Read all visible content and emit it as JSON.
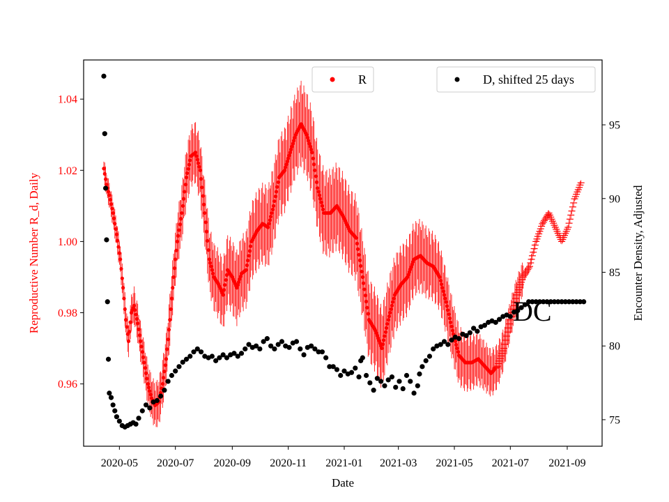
{
  "chart_data": {
    "type": "scatter",
    "title": "",
    "xlabel": "Date",
    "ylabel_left": "Reproductive Number R_d, Daily",
    "ylabel_right": "Encounter Density, Adjusted",
    "annotation": "DC",
    "grid": false,
    "left_axis_color": "#ff0000",
    "x_ticks": [
      "2020-05",
      "2020-07",
      "2020-09",
      "2020-11",
      "2021-01",
      "2021-03",
      "2021-05",
      "2021-07",
      "2021-09"
    ],
    "y_left_ticks": [
      "0.96",
      "0.98",
      "1.00",
      "1.02",
      "1.04"
    ],
    "y_right_ticks": [
      "75",
      "80",
      "85",
      "90",
      "95"
    ],
    "xlim": [
      "2020-03-23",
      "2021-10-09"
    ],
    "ylim_left": [
      0.9425,
      1.051
    ],
    "ylim_right": [
      73.2,
      99.4
    ],
    "legends": [
      {
        "label": "R",
        "color": "#ff0000",
        "position": "top-center"
      },
      {
        "label": "D, shifted 25 days",
        "color": "#000000",
        "position": "top-right"
      }
    ],
    "series": [
      {
        "name": "R",
        "axis": "left",
        "color": "#ff0000",
        "style": "points-with-errorbars",
        "points": [
          [
            "2020-04-14",
            1.0205
          ],
          [
            "2020-04-17",
            1.016
          ],
          [
            "2020-04-20",
            1.013
          ],
          [
            "2020-04-24",
            1.008
          ],
          [
            "2020-04-28",
            1.002
          ],
          [
            "2020-05-02",
            0.995
          ],
          [
            "2020-05-05",
            0.987
          ],
          [
            "2020-05-08",
            0.978
          ],
          [
            "2020-05-11",
            0.972
          ],
          [
            "2020-05-14",
            0.98
          ],
          [
            "2020-05-17",
            0.982
          ],
          [
            "2020-05-21",
            0.977
          ],
          [
            "2020-05-24",
            0.972
          ],
          [
            "2020-05-28",
            0.966
          ],
          [
            "2020-06-01",
            0.96
          ],
          [
            "2020-06-05",
            0.956
          ],
          [
            "2020-06-09",
            0.954
          ],
          [
            "2020-06-13",
            0.955
          ],
          [
            "2020-06-17",
            0.96
          ],
          [
            "2020-06-21",
            0.967
          ],
          [
            "2020-06-25",
            0.978
          ],
          [
            "2020-06-29",
            0.99
          ],
          [
            "2020-07-03",
            1.0
          ],
          [
            "2020-07-08",
            1.008
          ],
          [
            "2020-07-13",
            1.018
          ],
          [
            "2020-07-18",
            1.024
          ],
          [
            "2020-07-23",
            1.025
          ],
          [
            "2020-07-28",
            1.02
          ],
          [
            "2020-08-02",
            1.008
          ],
          [
            "2020-08-07",
            0.995
          ],
          [
            "2020-08-12",
            0.99
          ],
          [
            "2020-08-17",
            0.988
          ],
          [
            "2020-08-22",
            0.985
          ],
          [
            "2020-08-27",
            0.992
          ],
          [
            "2020-09-01",
            0.99
          ],
          [
            "2020-09-06",
            0.987
          ],
          [
            "2020-09-11",
            0.991
          ],
          [
            "2020-09-16",
            0.992
          ],
          [
            "2020-09-22",
            1.0
          ],
          [
            "2020-09-28",
            1.003
          ],
          [
            "2020-10-04",
            1.005
          ],
          [
            "2020-10-10",
            1.004
          ],
          [
            "2020-10-16",
            1.01
          ],
          [
            "2020-10-22",
            1.018
          ],
          [
            "2020-10-28",
            1.02
          ],
          [
            "2020-11-03",
            1.025
          ],
          [
            "2020-11-09",
            1.03
          ],
          [
            "2020-11-15",
            1.033
          ],
          [
            "2020-11-21",
            1.03
          ],
          [
            "2020-11-27",
            1.025
          ],
          [
            "2020-12-03",
            1.015
          ],
          [
            "2020-12-10",
            1.008
          ],
          [
            "2020-12-17",
            1.008
          ],
          [
            "2020-12-24",
            1.01
          ],
          [
            "2020-12-31",
            1.007
          ],
          [
            "2021-01-07",
            1.003
          ],
          [
            "2021-01-14",
            1.001
          ],
          [
            "2021-01-21",
            0.99
          ],
          [
            "2021-01-28",
            0.978
          ],
          [
            "2021-02-04",
            0.975
          ],
          [
            "2021-02-11",
            0.97
          ],
          [
            "2021-02-18",
            0.978
          ],
          [
            "2021-02-25",
            0.985
          ],
          [
            "2021-03-04",
            0.988
          ],
          [
            "2021-03-11",
            0.99
          ],
          [
            "2021-03-18",
            0.995
          ],
          [
            "2021-03-25",
            0.996
          ],
          [
            "2021-04-01",
            0.994
          ],
          [
            "2021-04-08",
            0.993
          ],
          [
            "2021-04-15",
            0.99
          ],
          [
            "2021-04-22",
            0.983
          ],
          [
            "2021-04-29",
            0.975
          ],
          [
            "2021-05-06",
            0.968
          ],
          [
            "2021-05-13",
            0.966
          ],
          [
            "2021-05-20",
            0.966
          ],
          [
            "2021-05-27",
            0.967
          ],
          [
            "2021-06-03",
            0.965
          ],
          [
            "2021-06-10",
            0.963
          ],
          [
            "2021-06-17",
            0.965
          ],
          [
            "2021-06-24",
            0.97
          ],
          [
            "2021-07-01",
            0.978
          ],
          [
            "2021-07-08",
            0.985
          ],
          [
            "2021-07-15",
            0.99
          ],
          [
            "2021-07-22",
            0.993
          ],
          [
            "2021-07-29",
            1.0
          ],
          [
            "2021-08-05",
            1.005
          ],
          [
            "2021-08-12",
            1.008
          ],
          [
            "2021-08-19",
            1.004
          ],
          [
            "2021-08-26",
            1.0
          ],
          [
            "2021-09-02",
            1.004
          ],
          [
            "2021-09-09",
            1.012
          ],
          [
            "2021-09-16",
            1.0165
          ]
        ]
      },
      {
        "name": "D, shifted 25 days",
        "axis": "right",
        "color": "#000000",
        "style": "points",
        "points": [
          [
            "2020-04-14",
            98.3
          ],
          [
            "2020-04-15",
            94.4
          ],
          [
            "2020-04-16",
            90.7
          ],
          [
            "2020-04-17",
            87.2
          ],
          [
            "2020-04-18",
            83.0
          ],
          [
            "2020-04-19",
            79.1
          ],
          [
            "2020-04-20",
            76.8
          ],
          [
            "2020-04-22",
            76.5
          ],
          [
            "2020-04-24",
            76.0
          ],
          [
            "2020-04-26",
            75.6
          ],
          [
            "2020-04-28",
            75.2
          ],
          [
            "2020-05-01",
            74.9
          ],
          [
            "2020-05-04",
            74.6
          ],
          [
            "2020-05-07",
            74.5
          ],
          [
            "2020-05-10",
            74.6
          ],
          [
            "2020-05-13",
            74.7
          ],
          [
            "2020-05-16",
            74.8
          ],
          [
            "2020-05-19",
            74.7
          ],
          [
            "2020-05-22",
            75.1
          ],
          [
            "2020-05-26",
            75.6
          ],
          [
            "2020-05-30",
            76.0
          ],
          [
            "2020-06-03",
            75.8
          ],
          [
            "2020-06-07",
            76.2
          ],
          [
            "2020-06-11",
            76.3
          ],
          [
            "2020-06-15",
            76.6
          ],
          [
            "2020-06-19",
            77.0
          ],
          [
            "2020-06-23",
            77.6
          ],
          [
            "2020-06-27",
            78.0
          ],
          [
            "2020-07-01",
            78.3
          ],
          [
            "2020-07-05",
            78.6
          ],
          [
            "2020-07-09",
            78.9
          ],
          [
            "2020-07-13",
            79.1
          ],
          [
            "2020-07-17",
            79.3
          ],
          [
            "2020-07-21",
            79.6
          ],
          [
            "2020-07-25",
            79.8
          ],
          [
            "2020-07-29",
            79.6
          ],
          [
            "2020-08-02",
            79.3
          ],
          [
            "2020-08-06",
            79.2
          ],
          [
            "2020-08-10",
            79.3
          ],
          [
            "2020-08-14",
            79.0
          ],
          [
            "2020-08-18",
            79.2
          ],
          [
            "2020-08-22",
            79.4
          ],
          [
            "2020-08-26",
            79.2
          ],
          [
            "2020-08-30",
            79.4
          ],
          [
            "2020-09-03",
            79.5
          ],
          [
            "2020-09-07",
            79.3
          ],
          [
            "2020-09-11",
            79.5
          ],
          [
            "2020-09-15",
            79.8
          ],
          [
            "2020-09-19",
            80.1
          ],
          [
            "2020-09-23",
            79.9
          ],
          [
            "2020-09-27",
            80.0
          ],
          [
            "2020-10-01",
            79.8
          ],
          [
            "2020-10-05",
            80.3
          ],
          [
            "2020-10-09",
            80.5
          ],
          [
            "2020-10-13",
            80.0
          ],
          [
            "2020-10-17",
            79.8
          ],
          [
            "2020-10-21",
            80.1
          ],
          [
            "2020-10-25",
            80.3
          ],
          [
            "2020-10-29",
            80.0
          ],
          [
            "2020-11-02",
            79.9
          ],
          [
            "2020-11-06",
            80.2
          ],
          [
            "2020-11-10",
            80.3
          ],
          [
            "2020-11-14",
            79.8
          ],
          [
            "2020-11-18",
            79.4
          ],
          [
            "2020-11-22",
            79.9
          ],
          [
            "2020-11-26",
            80.0
          ],
          [
            "2020-11-30",
            79.8
          ],
          [
            "2020-12-04",
            79.6
          ],
          [
            "2020-12-08",
            79.6
          ],
          [
            "2020-12-12",
            79.2
          ],
          [
            "2020-12-16",
            78.6
          ],
          [
            "2020-12-20",
            78.6
          ],
          [
            "2020-12-24",
            78.4
          ],
          [
            "2020-12-28",
            78.0
          ],
          [
            "2021-01-01",
            78.3
          ],
          [
            "2021-01-05",
            78.1
          ],
          [
            "2021-01-09",
            78.2
          ],
          [
            "2021-01-13",
            78.5
          ],
          [
            "2021-01-17",
            77.9
          ],
          [
            "2021-01-19",
            79.0
          ],
          [
            "2021-01-21",
            79.2
          ],
          [
            "2021-01-25",
            78.0
          ],
          [
            "2021-01-29",
            77.5
          ],
          [
            "2021-02-02",
            77.0
          ],
          [
            "2021-02-06",
            77.8
          ],
          [
            "2021-02-10",
            77.6
          ],
          [
            "2021-02-14",
            77.3
          ],
          [
            "2021-02-18",
            77.7
          ],
          [
            "2021-02-22",
            77.9
          ],
          [
            "2021-02-26",
            77.2
          ],
          [
            "2021-03-02",
            77.6
          ],
          [
            "2021-03-06",
            77.1
          ],
          [
            "2021-03-10",
            78.0
          ],
          [
            "2021-03-14",
            77.6
          ],
          [
            "2021-03-18",
            76.8
          ],
          [
            "2021-03-22",
            77.3
          ],
          [
            "2021-03-24",
            78.1
          ],
          [
            "2021-03-27",
            78.6
          ],
          [
            "2021-03-31",
            79.0
          ],
          [
            "2021-04-04",
            79.3
          ],
          [
            "2021-04-08",
            79.8
          ],
          [
            "2021-04-12",
            80.0
          ],
          [
            "2021-04-16",
            80.1
          ],
          [
            "2021-04-20",
            80.3
          ],
          [
            "2021-04-24",
            80.1
          ],
          [
            "2021-04-28",
            80.4
          ],
          [
            "2021-05-02",
            80.6
          ],
          [
            "2021-05-06",
            80.5
          ],
          [
            "2021-05-10",
            80.8
          ],
          [
            "2021-05-14",
            80.7
          ],
          [
            "2021-05-18",
            80.9
          ],
          [
            "2021-05-22",
            81.2
          ],
          [
            "2021-05-26",
            81.0
          ],
          [
            "2021-05-30",
            81.3
          ],
          [
            "2021-06-03",
            81.4
          ],
          [
            "2021-06-07",
            81.6
          ],
          [
            "2021-06-11",
            81.7
          ],
          [
            "2021-06-15",
            81.6
          ],
          [
            "2021-06-19",
            81.8
          ],
          [
            "2021-06-23",
            82.0
          ],
          [
            "2021-06-27",
            82.1
          ],
          [
            "2021-07-01",
            82.0
          ],
          [
            "2021-07-05",
            82.3
          ],
          [
            "2021-07-09",
            82.4
          ],
          [
            "2021-07-13",
            82.6
          ],
          [
            "2021-07-17",
            82.8
          ],
          [
            "2021-07-21",
            83.0
          ],
          [
            "2021-07-25",
            83.0
          ],
          [
            "2021-07-29",
            83.0
          ],
          [
            "2021-08-02",
            83.0
          ],
          [
            "2021-08-06",
            83.0
          ],
          [
            "2021-08-10",
            83.0
          ],
          [
            "2021-08-14",
            83.0
          ],
          [
            "2021-08-18",
            83.0
          ],
          [
            "2021-08-22",
            83.0
          ],
          [
            "2021-08-26",
            83.0
          ],
          [
            "2021-08-30",
            83.0
          ],
          [
            "2021-09-03",
            83.0
          ],
          [
            "2021-09-07",
            83.0
          ],
          [
            "2021-09-11",
            83.0
          ],
          [
            "2021-09-15",
            83.0
          ],
          [
            "2021-09-19",
            83.0
          ]
        ]
      }
    ]
  }
}
